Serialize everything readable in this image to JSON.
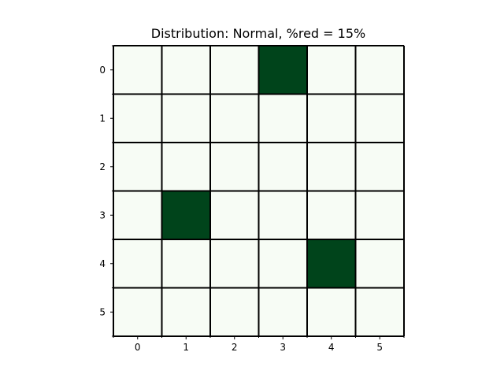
{
  "chart_data": {
    "type": "heatmap",
    "title": "Distribution: Normal, %red = 15%",
    "xlabel": "",
    "ylabel": "",
    "x_ticks": [
      "0",
      "1",
      "2",
      "3",
      "4",
      "5"
    ],
    "y_ticks": [
      "0",
      "1",
      "2",
      "3",
      "4",
      "5"
    ],
    "values": [
      [
        0,
        0,
        0,
        1,
        0,
        0
      ],
      [
        0,
        0,
        0,
        0,
        0,
        0
      ],
      [
        0,
        0,
        0,
        0,
        0,
        0
      ],
      [
        0,
        1,
        0,
        0,
        0,
        0
      ],
      [
        0,
        0,
        0,
        0,
        1,
        0
      ],
      [
        0,
        0,
        0,
        0,
        0,
        0
      ]
    ],
    "colors": {
      "low": "#f7fcf5",
      "high": "#00441b",
      "gridline": "#000000"
    },
    "grid": true,
    "legend": "none"
  }
}
